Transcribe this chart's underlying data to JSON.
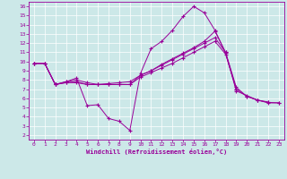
{
  "xlabel": "Windchill (Refroidissement éolien,°C)",
  "bg_color": "#cce8e8",
  "line_color": "#990099",
  "grid_color": "#ffffff",
  "xlim": [
    -0.5,
    23.5
  ],
  "ylim": [
    1.5,
    16.5
  ],
  "xticks": [
    0,
    1,
    2,
    3,
    4,
    5,
    6,
    7,
    8,
    9,
    10,
    11,
    12,
    13,
    14,
    15,
    16,
    17,
    18,
    19,
    20,
    21,
    22,
    23
  ],
  "yticks": [
    2,
    3,
    4,
    5,
    6,
    7,
    8,
    9,
    10,
    11,
    12,
    13,
    14,
    15,
    16
  ],
  "series": [
    {
      "x": [
        0,
        1,
        2,
        3,
        4,
        5,
        6,
        7,
        8,
        9,
        10,
        11,
        12,
        13,
        14,
        15,
        16,
        17,
        18,
        19
      ],
      "y": [
        9.8,
        9.8,
        7.5,
        7.8,
        8.2,
        5.2,
        5.3,
        3.8,
        3.5,
        2.5,
        8.7,
        11.4,
        12.2,
        13.4,
        14.9,
        16.0,
        15.3,
        13.4,
        10.9,
        7.0
      ]
    },
    {
      "x": [
        0,
        1,
        2,
        3,
        4,
        5,
        6,
        7,
        8,
        9,
        10,
        11,
        12,
        13,
        14,
        15,
        16,
        17,
        18,
        19,
        20,
        21,
        22
      ],
      "y": [
        9.8,
        9.8,
        7.5,
        7.8,
        8.0,
        7.7,
        7.5,
        7.6,
        7.7,
        7.8,
        8.5,
        9.0,
        9.7,
        10.3,
        10.9,
        11.5,
        12.2,
        13.3,
        11.0,
        6.8,
        6.3,
        5.8,
        5.6
      ]
    },
    {
      "x": [
        0,
        1,
        2,
        3,
        4,
        5,
        6,
        7,
        8,
        9,
        10,
        11,
        12,
        13,
        14,
        15,
        16,
        17,
        18,
        19,
        20,
        21,
        22,
        23
      ],
      "y": [
        9.8,
        9.8,
        7.5,
        7.7,
        7.8,
        7.5,
        7.5,
        7.5,
        7.5,
        7.5,
        8.3,
        8.8,
        9.3,
        9.8,
        10.4,
        11.0,
        11.6,
        12.2,
        10.8,
        7.0,
        6.2,
        5.8,
        5.55,
        5.5
      ]
    },
    {
      "x": [
        0,
        1,
        2,
        3,
        4,
        5,
        6,
        7,
        8,
        9,
        10,
        11,
        12,
        13,
        14,
        15,
        16,
        17,
        18,
        19,
        20,
        21,
        22,
        23
      ],
      "y": [
        9.8,
        9.8,
        7.5,
        7.7,
        7.7,
        7.5,
        7.5,
        7.5,
        7.5,
        7.5,
        8.5,
        9.0,
        9.6,
        10.2,
        10.8,
        11.4,
        12.0,
        12.6,
        11.0,
        7.2,
        6.2,
        5.8,
        5.5,
        5.5
      ]
    }
  ]
}
